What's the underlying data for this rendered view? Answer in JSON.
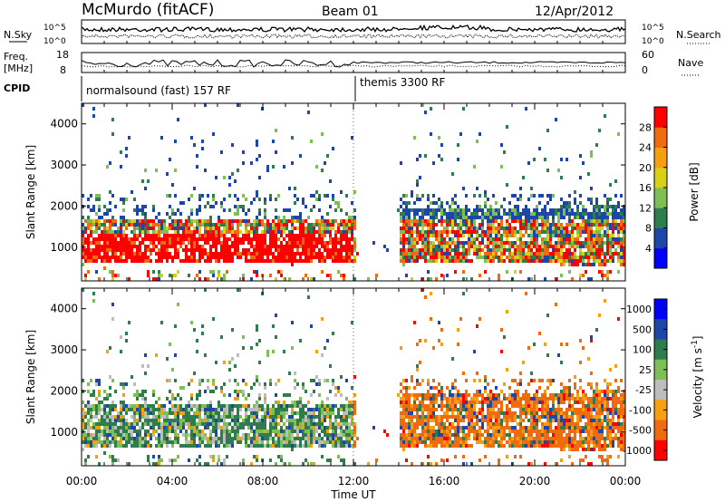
{
  "header": {
    "station": "McMurdo (fitACF)",
    "beam": "Beam 01",
    "date": "12/Apr/2012"
  },
  "noise_panel": {
    "left_label": "N.Sky",
    "right_label": "N.Search",
    "top_tick": "10^5",
    "bottom_tick": "10^0"
  },
  "freq_panel": {
    "left_label_line1": "Freq.",
    "left_label_line2": "[MHz]",
    "left_ticks": [
      "18",
      "8"
    ],
    "right_label": "Nave",
    "right_ticks": [
      "60",
      "0"
    ]
  },
  "cpid_panel": {
    "label": "CPID",
    "programs": [
      {
        "name": "normalsound (fast) 157 RF",
        "start_hour": 0
      },
      {
        "name": "themis 3300 RF",
        "start_hour": 12
      }
    ]
  },
  "colors": {
    "power": [
      "#0000ff",
      "#1e46a8",
      "#2f7d4e",
      "#7dbf55",
      "#d9cf16",
      "#f5a010",
      "#f06a10",
      "#ff0000"
    ],
    "velocity": [
      "#0000ff",
      "#1e46a8",
      "#2f7d4e",
      "#7dbf55",
      "#bdbdbd",
      "#f5a010",
      "#f06a10",
      "#ff0000"
    ]
  },
  "chart_data": [
    {
      "type": "heatmap",
      "name": "power",
      "xlabel": "",
      "ylabel": "Slant Range [km]",
      "xlim": [
        0,
        24
      ],
      "ylim": [
        180,
        4500
      ],
      "y_ticks": [
        "1000",
        "2000",
        "3000",
        "4000"
      ],
      "colorbar": {
        "label": "Power [dB]",
        "ticks": [
          "4",
          "8",
          "12",
          "16",
          "20",
          "24",
          "28"
        ],
        "range": [
          0,
          32
        ]
      }
    },
    {
      "type": "heatmap",
      "name": "velocity",
      "xlabel": "Time UT",
      "ylabel": "Slant Range [km]",
      "xlim": [
        0,
        24
      ],
      "ylim": [
        180,
        4500
      ],
      "x_ticks": [
        "00:00",
        "04:00",
        "08:00",
        "12:00",
        "16:00",
        "20:00",
        "00:00"
      ],
      "y_ticks": [
        "1000",
        "2000",
        "3000",
        "4000"
      ],
      "colorbar": {
        "label": "Velocity [m s^-1]",
        "ticks": [
          "1000",
          "500",
          "100",
          "25",
          "-25",
          "-100",
          "-500",
          "-1000"
        ]
      }
    }
  ]
}
